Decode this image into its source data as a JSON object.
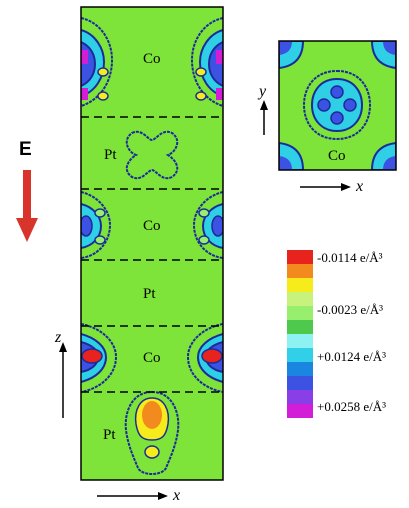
{
  "main_panel": {
    "layers": [
      {
        "label": "Co"
      },
      {
        "label": "Pt"
      },
      {
        "label": "Co"
      },
      {
        "label": "Pt"
      },
      {
        "label": "Co"
      },
      {
        "label": "Pt"
      }
    ],
    "axis_vertical": "z",
    "axis_horizontal": "x"
  },
  "inset_panel": {
    "label": "Co",
    "axis_vertical": "y",
    "axis_horizontal": "x"
  },
  "field": {
    "label": "E",
    "direction": "down",
    "color": "#d9342b"
  },
  "colorbar": {
    "swatches": [
      {
        "color": "#e8231e"
      },
      {
        "color": "#f28a1d"
      },
      {
        "color": "#f6ec1c"
      },
      {
        "color": "#c7f27c"
      },
      {
        "color": "#98ef6e"
      },
      {
        "color": "#4fc94b"
      },
      {
        "color": "#8ff2f2"
      },
      {
        "color": "#32cfe8"
      },
      {
        "color": "#1a86e0"
      },
      {
        "color": "#3c52e2"
      },
      {
        "color": "#8a3ee6"
      },
      {
        "color": "#d21ed6"
      }
    ],
    "labels": [
      {
        "text": "-0.0114 e/Å³"
      },
      {
        "text": "-0.0023 e/Å³"
      },
      {
        "text": "+0.0124 e/Å³"
      },
      {
        "text": "+0.0258 e/Å³"
      }
    ]
  },
  "colors": {
    "background": "#7ee43a",
    "contour": "#1b2c9a"
  }
}
